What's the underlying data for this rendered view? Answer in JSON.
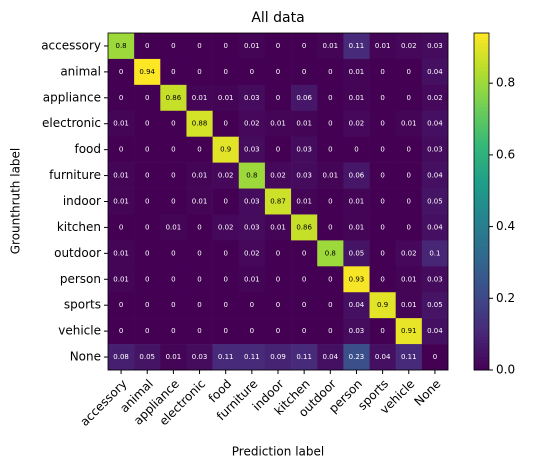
{
  "chart_data": {
    "type": "heatmap",
    "title": "All data",
    "x_label": "Prediction label",
    "y_label": "Grounthruth label",
    "x_categories": [
      "accessory",
      "animal",
      "appliance",
      "electronic",
      "food",
      "furniture",
      "indoor",
      "kitchen",
      "outdoor",
      "person",
      "sports",
      "vehicle",
      "None"
    ],
    "y_categories": [
      "accessory",
      "animal",
      "appliance",
      "electronic",
      "food",
      "furniture",
      "indoor",
      "kitchen",
      "outdoor",
      "person",
      "sports",
      "vehicle",
      "None"
    ],
    "values": [
      [
        0.8,
        0,
        0,
        0,
        0,
        0.01,
        0,
        0,
        0.01,
        0.11,
        0.01,
        0.02,
        0.03
      ],
      [
        0,
        0.94,
        0,
        0,
        0,
        0,
        0,
        0,
        0,
        0.01,
        0,
        0,
        0.04
      ],
      [
        0,
        0,
        0.86,
        0.01,
        0.01,
        0.03,
        0,
        0.06,
        0,
        0.01,
        0,
        0,
        0.02
      ],
      [
        0.01,
        0,
        0,
        0.88,
        0,
        0.02,
        0.01,
        0.01,
        0,
        0.02,
        0,
        0.01,
        0.04
      ],
      [
        0,
        0,
        0,
        0,
        0.9,
        0.03,
        0,
        0.03,
        0,
        0,
        0,
        0,
        0.03
      ],
      [
        0.01,
        0,
        0,
        0.01,
        0.02,
        0.8,
        0.02,
        0.03,
        0.01,
        0.06,
        0,
        0,
        0.04
      ],
      [
        0.01,
        0,
        0,
        0.01,
        0,
        0.03,
        0.87,
        0.01,
        0,
        0.01,
        0,
        0,
        0.05
      ],
      [
        0,
        0,
        0.01,
        0,
        0.02,
        0.03,
        0.01,
        0.86,
        0,
        0.01,
        0,
        0,
        0.04
      ],
      [
        0.01,
        0,
        0,
        0,
        0,
        0.02,
        0,
        0,
        0.8,
        0.05,
        0,
        0.02,
        0.1
      ],
      [
        0.01,
        0,
        0,
        0,
        0,
        0.01,
        0,
        0,
        0,
        0.93,
        0,
        0.01,
        0.03
      ],
      [
        0,
        0,
        0,
        0,
        0,
        0,
        0,
        0,
        0,
        0.04,
        0.9,
        0.01,
        0.05
      ],
      [
        0,
        0,
        0,
        0,
        0,
        0,
        0,
        0,
        0,
        0.03,
        0,
        0.91,
        0.04
      ],
      [
        0.08,
        0.05,
        0.01,
        0.03,
        0.11,
        0.11,
        0.09,
        0.11,
        0.04,
        0.23,
        0.04,
        0.11,
        0
      ]
    ],
    "colormap": "viridis",
    "colorbar_lim": [
      0,
      0.94
    ],
    "colorbar_ticks": [
      {
        "value": 0,
        "label": "0.0"
      },
      0.2,
      0.4,
      0.6,
      0.8
    ]
  }
}
